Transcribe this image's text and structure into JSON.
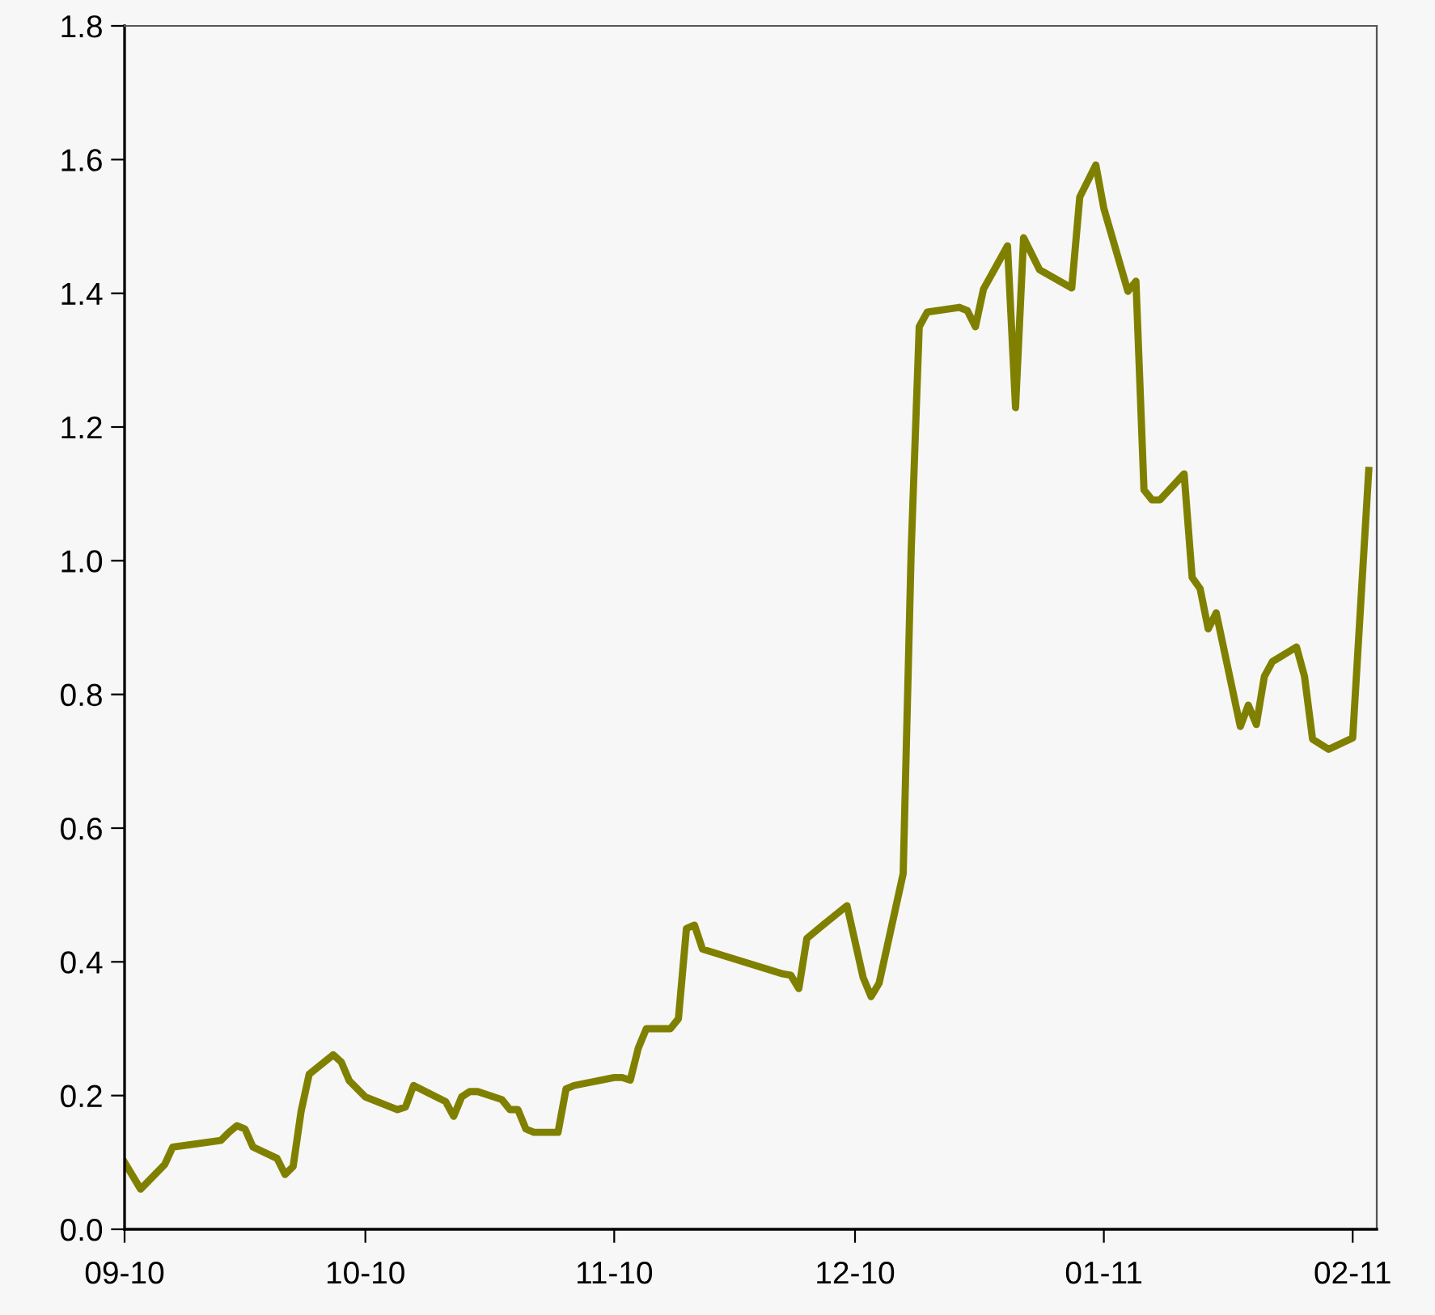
{
  "chart_data": {
    "type": "line",
    "x": [
      "2010-09-01",
      "2010-09-03",
      "2010-09-06",
      "2010-09-07",
      "2010-09-13",
      "2010-09-14",
      "2010-09-15",
      "2010-09-16",
      "2010-09-17",
      "2010-09-20",
      "2010-09-21",
      "2010-09-22",
      "2010-09-23",
      "2010-09-24",
      "2010-09-27",
      "2010-09-28",
      "2010-09-29",
      "2010-10-01",
      "2010-10-05",
      "2010-10-06",
      "2010-10-07",
      "2010-10-11",
      "2010-10-12",
      "2010-10-13",
      "2010-10-14",
      "2010-10-15",
      "2010-10-18",
      "2010-10-19",
      "2010-10-20",
      "2010-10-21",
      "2010-10-22",
      "2010-10-25",
      "2010-10-26",
      "2010-10-27",
      "2010-11-01",
      "2010-11-02",
      "2010-11-03",
      "2010-11-04",
      "2010-11-05",
      "2010-11-08",
      "2010-11-09",
      "2010-11-10",
      "2010-11-11",
      "2010-11-12",
      "2010-11-22",
      "2010-11-23",
      "2010-11-24",
      "2010-11-25",
      "2010-11-27",
      "2010-11-30",
      "2010-12-02",
      "2010-12-03",
      "2010-12-04",
      "2010-12-07",
      "2010-12-08",
      "2010-12-09",
      "2010-12-10",
      "2010-12-14",
      "2010-12-15",
      "2010-12-16",
      "2010-12-17",
      "2010-12-20",
      "2010-12-21",
      "2010-12-22",
      "2010-12-24",
      "2010-12-28",
      "2010-12-29",
      "2010-12-31",
      "2011-01-01",
      "2011-01-04",
      "2011-01-05",
      "2011-01-06",
      "2011-01-07",
      "2011-01-08",
      "2011-01-11",
      "2011-01-12",
      "2011-01-13",
      "2011-01-14",
      "2011-01-15",
      "2011-01-18",
      "2011-01-19",
      "2011-01-20",
      "2011-01-21",
      "2011-01-22",
      "2011-01-25",
      "2011-01-26",
      "2011-01-27",
      "2011-01-29",
      "2011-02-01",
      "2011-02-03"
    ],
    "series": [
      {
        "color": "#808000",
        "values": [
          0.1,
          0.06,
          0.097,
          0.123,
          0.133,
          0.145,
          0.155,
          0.15,
          0.123,
          0.106,
          0.082,
          0.094,
          0.177,
          0.232,
          0.261,
          0.25,
          0.222,
          0.198,
          0.179,
          0.183,
          0.215,
          0.191,
          0.169,
          0.198,
          0.206,
          0.206,
          0.194,
          0.179,
          0.179,
          0.15,
          0.145,
          0.145,
          0.21,
          0.215,
          0.227,
          0.227,
          0.223,
          0.271,
          0.3,
          0.3,
          0.315,
          0.45,
          0.455,
          0.419,
          0.382,
          0.38,
          0.36,
          0.435,
          0.455,
          0.484,
          0.377,
          0.348,
          0.368,
          0.532,
          1.016,
          1.35,
          1.372,
          1.379,
          1.374,
          1.35,
          1.406,
          1.471,
          1.229,
          1.483,
          1.435,
          1.408,
          1.544,
          1.592,
          1.527,
          1.403,
          1.418,
          1.106,
          1.091,
          1.091,
          1.13,
          0.975,
          0.958,
          0.898,
          0.922,
          0.752,
          0.784,
          0.755,
          0.827,
          0.849,
          0.871,
          0.827,
          0.733,
          0.718,
          0.735,
          1.135
        ]
      }
    ],
    "xlim": [
      "2010-09-01",
      "2011-02-04"
    ],
    "xticks": [
      {
        "value": "2010-09-01",
        "label": "09-10"
      },
      {
        "value": "2010-10-01",
        "label": "10-10"
      },
      {
        "value": "2010-11-01",
        "label": "11-10"
      },
      {
        "value": "2010-12-01",
        "label": "12-10"
      },
      {
        "value": "2011-01-01",
        "label": "01-11"
      },
      {
        "value": "2011-02-01",
        "label": "02-11"
      }
    ],
    "ylim": [
      0,
      1.8
    ],
    "yticks": [
      {
        "value": 0,
        "label": "0.0"
      },
      0.2,
      0.4,
      0.6,
      0.8,
      {
        "value": 1,
        "label": "1.0"
      },
      1.2,
      1.4,
      1.6,
      1.8
    ],
    "grid": false,
    "legend": false,
    "marker": "none",
    "line_style": "solid"
  }
}
